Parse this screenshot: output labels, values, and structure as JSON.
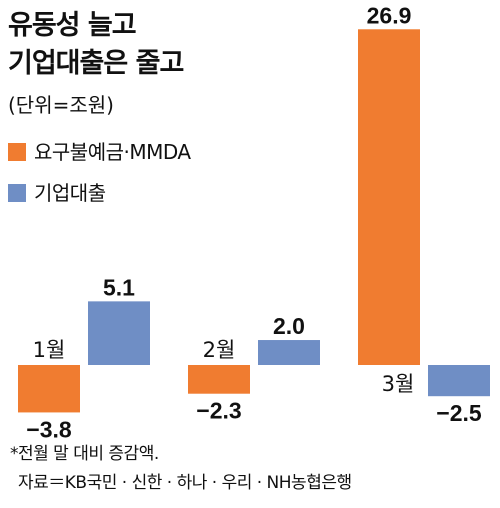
{
  "title_line1": "유동성 늘고",
  "title_line2": "기업대출은 줄고",
  "unit_label": "(단위=조원)",
  "footnote": "*전월 말 대비 증감액.",
  "source": "자료＝KB국민 · 신한 · 하나 · 우리 · NH농협은행",
  "chart_data": {
    "type": "bar",
    "title": "유동성 늘고 기업대출은 줄고",
    "categories": [
      "1월",
      "2월",
      "3월"
    ],
    "series": [
      {
        "name": "요구불예금·MMDA",
        "values": [
          -3.8,
          -2.3,
          26.9
        ],
        "labels": [
          "−3.8",
          "−2.3",
          "26.9"
        ],
        "color": "#f07c30"
      },
      {
        "name": "기업대출",
        "values": [
          5.1,
          2.0,
          -2.5
        ],
        "labels": [
          "5.1",
          "2.0",
          "−2.5"
        ],
        "color": "#6f8ec5"
      }
    ],
    "ylim": [
      -4.5,
      27.5
    ],
    "grid": false,
    "legend": "top-left"
  }
}
